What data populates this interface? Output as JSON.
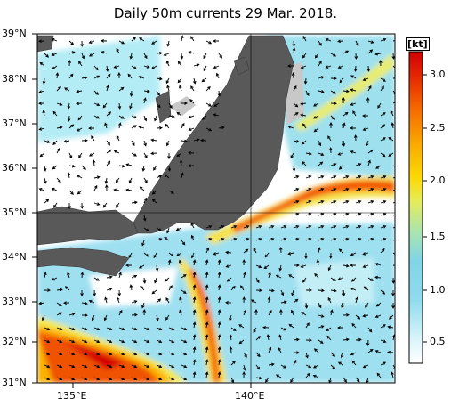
{
  "title": "Daily 50m currents 29 Mar. 2018.",
  "map": {
    "lat_labels": [
      "39°N",
      "38°N",
      "37°N",
      "36°N",
      "35°N",
      "34°N",
      "33°N",
      "32°N",
      "31°N"
    ],
    "lon_labels": [
      "135°E",
      "140°E"
    ],
    "extent": {
      "lon_min": 134,
      "lon_max": 144,
      "lat_min": 31,
      "lat_max": 39
    },
    "land_color": "#595959",
    "shelf_color": "#c8c8c8",
    "water_color": "#ffffff"
  },
  "colorbar": {
    "unit": "[kt]",
    "ticks": [
      "0.5",
      "1.0",
      "1.5",
      "2.0",
      "2.5",
      "3.0"
    ],
    "range": [
      0.3,
      3.3
    ],
    "colors": [
      "#ffffff",
      "#b4ecf5",
      "#7fd8ee",
      "#9fe3b4",
      "#e4ec5c",
      "#fdd400",
      "#f98a00",
      "#ec3a00",
      "#d40000"
    ]
  }
}
